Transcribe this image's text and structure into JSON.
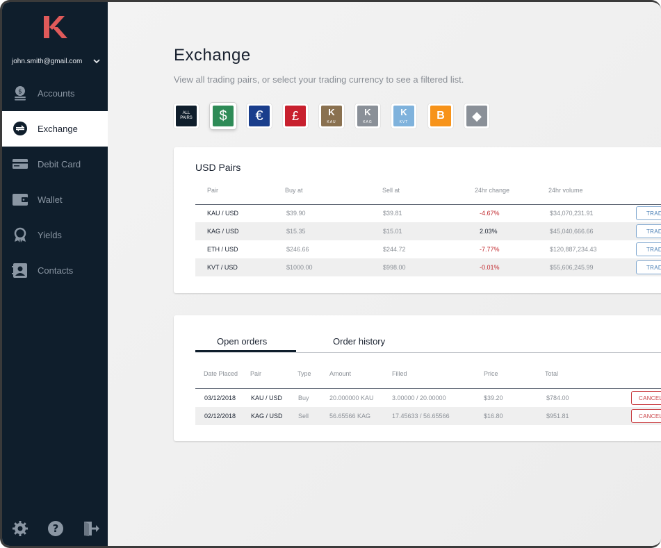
{
  "sidebar": {
    "email": "john.smith@gmail.com",
    "items": [
      {
        "label": "Accounts",
        "icon": "coins-icon"
      },
      {
        "label": "Exchange",
        "icon": "exchange-icon"
      },
      {
        "label": "Debit Card",
        "icon": "debit-card-icon"
      },
      {
        "label": "Wallet",
        "icon": "wallet-icon"
      },
      {
        "label": "Yields",
        "icon": "award-icon"
      },
      {
        "label": "Contacts",
        "icon": "contacts-icon"
      }
    ],
    "active": "Exchange"
  },
  "header": {
    "title": "Exchange",
    "subtitle": "View all trading pairs, or select your trading currency to see a filtered list."
  },
  "currencies": [
    {
      "id": "all",
      "line1": "ALL",
      "line2": "PAIRS",
      "color": "#0f1e2c"
    },
    {
      "id": "usd",
      "symbol": "$",
      "color": "#2e8b57"
    },
    {
      "id": "eur",
      "symbol": "€",
      "color": "#1a3e8c"
    },
    {
      "id": "gbp",
      "symbol": "£",
      "color": "#c8202e"
    },
    {
      "id": "kau",
      "symbol": "K",
      "sub": "KAU",
      "color": "#8a7150"
    },
    {
      "id": "kag",
      "symbol": "K",
      "sub": "KAG",
      "color": "#8a9098"
    },
    {
      "id": "kvt",
      "symbol": "K",
      "sub": "KVT",
      "color": "#7fb2dc"
    },
    {
      "id": "btc",
      "symbol": "B",
      "color": "#f7931a"
    },
    {
      "id": "eth",
      "symbol": "◆",
      "color": "#8a9098"
    }
  ],
  "pairs_card": {
    "title": "USD Pairs",
    "columns": [
      "Pair",
      "Buy at",
      "Sell at",
      "24hr change",
      "24hr volume"
    ],
    "rows": [
      {
        "pair": "KAU / USD",
        "buy": "$39.90",
        "sell": "$39.81",
        "change": "-4.67%",
        "volume": "$34,070,231.91",
        "change_dir": "neg"
      },
      {
        "pair": "KAG / USD",
        "buy": "$15.35",
        "sell": "$15.01",
        "change": "2.03%",
        "volume": "$45,040,666.66",
        "change_dir": "pos"
      },
      {
        "pair": "ETH / USD",
        "buy": "$246.66",
        "sell": "$244.72",
        "change": "-7.77%",
        "volume": "$120,887,234.43",
        "change_dir": "neg"
      },
      {
        "pair": "KVT / USD",
        "buy": "$1000.00",
        "sell": "$998.00",
        "change": "-0.01%",
        "volume": "$55,606,245.99",
        "change_dir": "neg"
      }
    ],
    "trade_label": "TRADE"
  },
  "orders_card": {
    "tabs": [
      "Open orders",
      "Order history"
    ],
    "columns": [
      "Date Placed",
      "Pair",
      "Type",
      "Amount",
      "Filled",
      "Price",
      "Total"
    ],
    "rows": [
      {
        "date": "03/12/2018",
        "pair": "KAU / USD",
        "type": "Buy",
        "amount": "20.000000 KAU",
        "filled": "3.00000 / 20.00000",
        "price": "$39.20",
        "total": "$784.00"
      },
      {
        "date": "02/12/2018",
        "pair": "KAG / USD",
        "type": "Sell",
        "amount": "56.65566 KAG",
        "filled": "17.45633 / 56.65566",
        "price": "$16.80",
        "total": "$951.81"
      }
    ],
    "cancel_label": "CANCEL"
  }
}
